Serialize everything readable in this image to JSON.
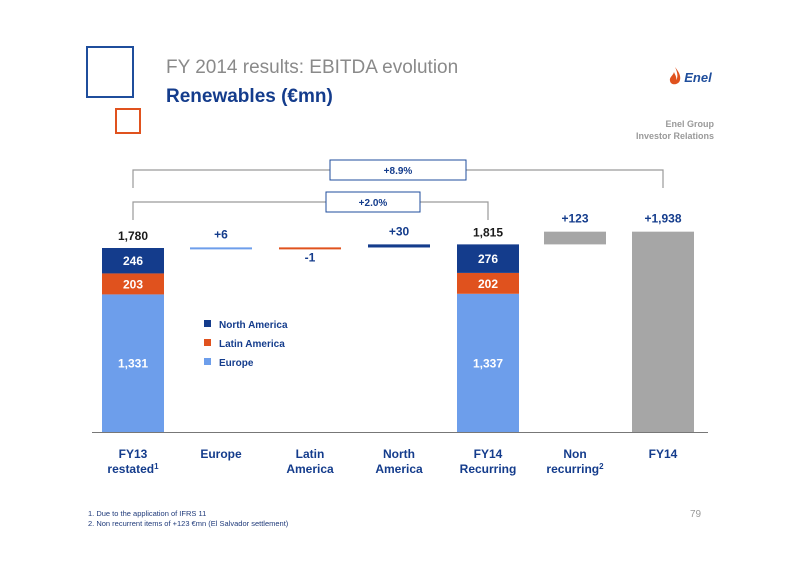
{
  "slide": {
    "title": "FY 2014 results: EBITDA evolution",
    "subtitle": "Renewables (€mn)",
    "logo_text": "Enel",
    "group_line1": "Enel Group",
    "group_line2": "Investor Relations",
    "page_number": "79",
    "footnotes": [
      "1.  Due to the application of IFRS 11",
      "2.  Non recurrent items of +123 €mn (El Salvador settlement)"
    ]
  },
  "colors": {
    "north_america": "#143c8c",
    "latin_america": "#e0521e",
    "europe": "#6d9eeb",
    "non_recurring": "#a6a6a6",
    "axis_label": "#143c8c"
  },
  "chart_data": {
    "type": "bar",
    "subtype": "waterfall",
    "categories": [
      "FY13 restated",
      "Europe",
      "Latin America",
      "North America",
      "FY14 Recurring",
      "Non recurring",
      "FY14"
    ],
    "category_labels": [
      {
        "line1": "FY13",
        "line2": "restated",
        "sup": "1"
      },
      {
        "line1": "Europe",
        "line2": "",
        "sup": ""
      },
      {
        "line1": "Latin",
        "line2": "America",
        "sup": ""
      },
      {
        "line1": "North",
        "line2": "America",
        "sup": ""
      },
      {
        "line1": "FY14",
        "line2": "Recurring",
        "sup": ""
      },
      {
        "line1": "Non",
        "line2": "recurring",
        "sup": "2"
      },
      {
        "line1": "FY14",
        "line2": "",
        "sup": ""
      }
    ],
    "stacked_totals": [
      {
        "category": "FY13 restated",
        "total": 1780,
        "total_label": "1,780",
        "segments": [
          {
            "name": "Europe",
            "value": 1331,
            "label": "1,331"
          },
          {
            "name": "Latin America",
            "value": 203,
            "label": "203"
          },
          {
            "name": "North America",
            "value": 246,
            "label": "246"
          }
        ]
      },
      {
        "category": "FY14 Recurring",
        "total": 1815,
        "total_label": "1,815",
        "segments": [
          {
            "name": "Europe",
            "value": 1337,
            "label": "1,337"
          },
          {
            "name": "Latin America",
            "value": 202,
            "label": "202"
          },
          {
            "name": "North America",
            "value": 276,
            "label": "276"
          }
        ]
      }
    ],
    "deltas": [
      {
        "category": "Europe",
        "value": 6,
        "label": "+6",
        "series": "Europe"
      },
      {
        "category": "Latin America",
        "value": -1,
        "label": "-1",
        "series": "Latin America"
      },
      {
        "category": "North America",
        "value": 30,
        "label": "+30",
        "series": "North America"
      },
      {
        "category": "Non recurring",
        "value": 123,
        "label": "+123",
        "series": "Non recurring"
      }
    ],
    "final": {
      "category": "FY14",
      "value": 1938,
      "label": "+1,938"
    },
    "legend": [
      "North America",
      "Latin America",
      "Europe"
    ],
    "brackets": [
      {
        "from": "FY13 restated",
        "to": "FY14",
        "label": "+8.9%"
      },
      {
        "from": "FY13 restated",
        "to": "FY14 Recurring",
        "label": "+2.0%"
      }
    ]
  }
}
